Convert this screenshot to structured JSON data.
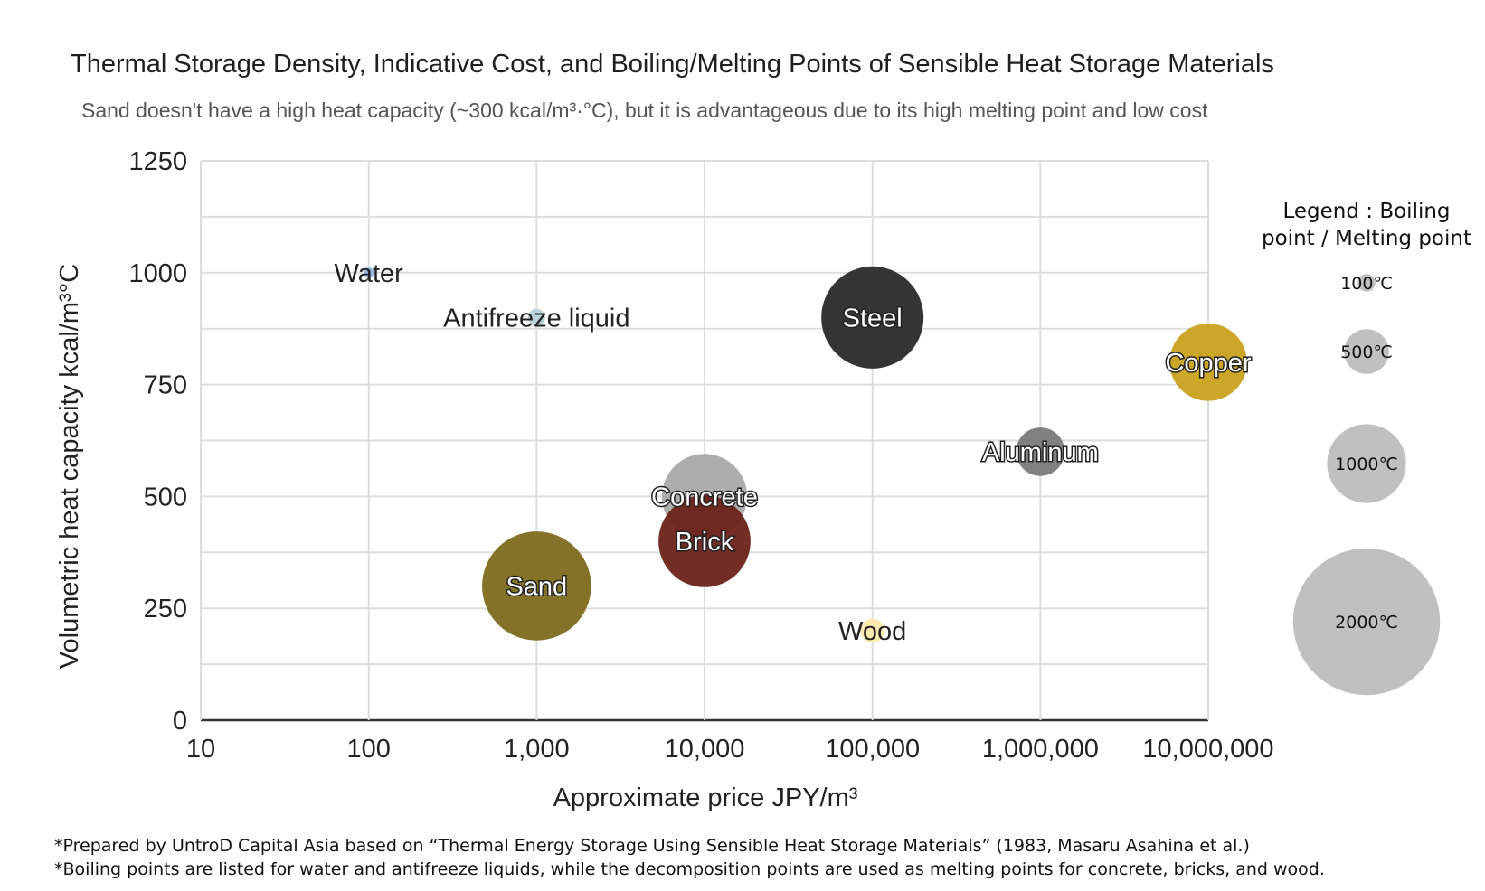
{
  "title": "Thermal Storage Density, Indicative Cost, and Boiling/Melting Points of Sensible Heat Storage Materials",
  "subtitle": "Sand doesn't have a high heat capacity (~300 kcal/m³·°C), but it is advantageous due to its high melting point and low cost",
  "notes": [
    "*Prepared by UntroD Capital Asia based on “Thermal Energy Storage Using Sensible Heat Storage Materials” (1983, Masaru Asahina et al.)",
    "*Boiling points are listed for water and antifreeze liquids, while the decomposition points are used as melting points for concrete, bricks, and wood."
  ],
  "chart_data": {
    "type": "scatter",
    "subtype": "bubble",
    "xlabel": "Approximate price JPY/m³",
    "ylabel": "Volumetric heat capacity kcal/m³°C",
    "x_scale": "log",
    "xlim": [
      10,
      10000000
    ],
    "ylim": [
      0,
      1250
    ],
    "x_ticks": [
      "10",
      "100",
      "1,000",
      "10,000",
      "100,000",
      "1,000,000",
      "10,000,000"
    ],
    "y_ticks": [
      "0",
      "250",
      "500",
      "750",
      "1000",
      "1250"
    ],
    "grid": true,
    "size_legend_title": [
      "Legend : Boiling",
      "point / Melting point"
    ],
    "size_legend": [
      {
        "label": "100℃",
        "value": 100
      },
      {
        "label": "500℃",
        "value": 500
      },
      {
        "label": "1000℃",
        "value": 1000
      },
      {
        "label": "2000℃",
        "value": 2000
      }
    ],
    "points": [
      {
        "label": "Water",
        "x": 100,
        "y": 1000,
        "size": 100,
        "color": "#8fb6e6",
        "halo": false
      },
      {
        "label": "Antifreeze liquid",
        "x": 1000,
        "y": 900,
        "size": 200,
        "color": "#b5d3d9",
        "halo": false
      },
      {
        "label": "Sand",
        "x": 1000,
        "y": 300,
        "size": 1550,
        "color": "#7d6a1c",
        "halo": true
      },
      {
        "label": "Concrete",
        "x": 10000,
        "y": 500,
        "size": 1200,
        "color": "#a9a9a9",
        "halo": true
      },
      {
        "label": "Brick",
        "x": 10000,
        "y": 400,
        "size": 1300,
        "color": "#6b2218",
        "halo": true
      },
      {
        "label": "Steel",
        "x": 100000,
        "y": 900,
        "size": 1450,
        "color": "#2a2a2a",
        "halo": true
      },
      {
        "label": "Wood",
        "x": 100000,
        "y": 200,
        "size": 300,
        "color": "#fde9a8",
        "halo": false
      },
      {
        "label": "Aluminum",
        "x": 1000000,
        "y": 600,
        "size": 660,
        "color": "#7a7a7a",
        "halo": true
      },
      {
        "label": "Copper",
        "x": 10000000,
        "y": 800,
        "size": 1085,
        "color": "#c9a11d",
        "halo": true
      }
    ]
  }
}
